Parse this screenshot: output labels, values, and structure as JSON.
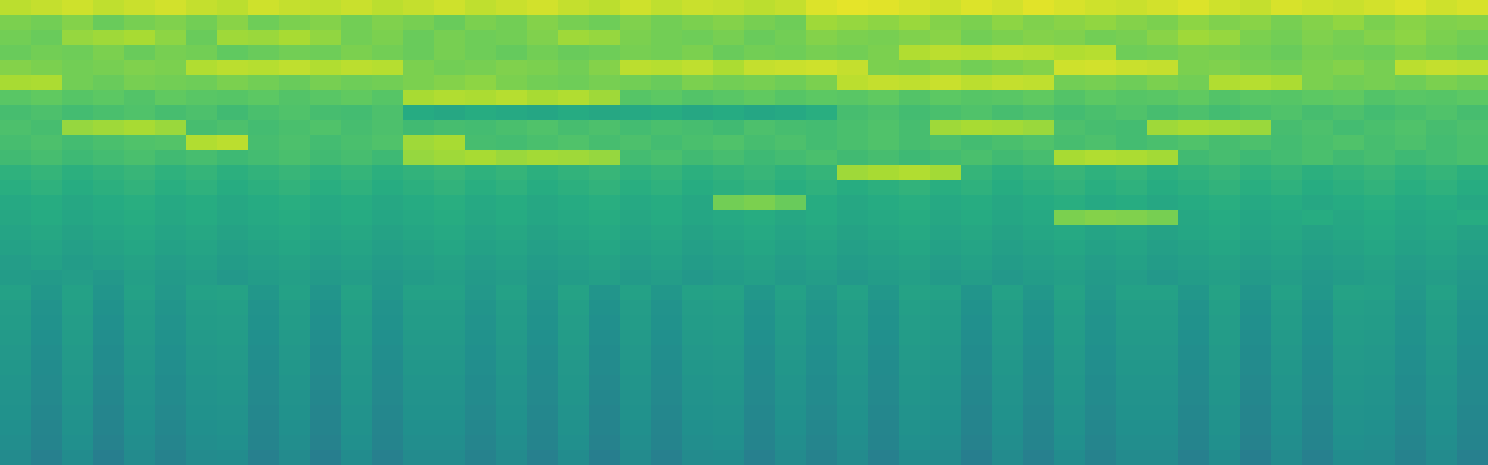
{
  "chart_data": {
    "type": "heatmap",
    "tick_labels": false,
    "color": "viridis",
    "zlim": [
      -40,
      100
    ],
    "cells": [
      [
        86,
        88,
        90,
        87,
        89,
        91,
        88,
        86,
        90,
        88,
        87,
        89,
        86,
        88,
        90,
        87,
        89,
        91,
        88,
        86,
        90,
        87,
        89,
        88,
        86,
        88,
        93,
        95,
        94,
        92,
        90,
        93,
        91,
        94,
        92,
        90,
        89,
        91,
        93,
        90,
        88,
        92,
        90,
        89,
        91,
        93,
        90,
        92
      ],
      [
        72,
        70,
        74,
        68,
        71,
        73,
        70,
        75,
        69,
        72,
        74,
        70,
        73,
        71,
        68,
        72,
        70,
        74,
        71,
        69,
        73,
        70,
        72,
        74,
        71,
        69,
        80,
        78,
        76,
        79,
        74,
        72,
        76,
        73,
        75,
        77,
        74,
        72,
        76,
        73,
        75,
        71,
        74,
        77,
        72,
        75,
        73,
        74
      ],
      [
        70,
        68,
        78,
        80,
        82,
        76,
        68,
        80,
        79,
        82,
        77,
        70,
        72,
        68,
        71,
        69,
        70,
        73,
        80,
        78,
        72,
        70,
        69,
        71,
        68,
        70,
        74,
        72,
        71,
        73,
        75,
        70,
        72,
        74,
        73,
        70,
        71,
        75,
        80,
        78,
        72,
        70,
        73,
        71,
        74,
        76,
        72,
        70
      ],
      [
        68,
        70,
        69,
        72,
        68,
        71,
        70,
        66,
        68,
        70,
        69,
        72,
        70,
        68,
        71,
        69,
        67,
        70,
        68,
        69,
        71,
        70,
        72,
        68,
        70,
        69,
        71,
        70,
        72,
        84,
        86,
        85,
        87,
        86,
        84,
        85,
        69,
        70,
        72,
        71,
        70,
        68,
        71,
        70,
        69,
        72,
        70,
        68
      ],
      [
        74,
        72,
        70,
        71,
        73,
        72,
        84,
        86,
        85,
        87,
        84,
        86,
        85,
        72,
        70,
        71,
        73,
        72,
        70,
        74,
        86,
        85,
        87,
        83,
        88,
        89,
        90,
        88,
        72,
        71,
        73,
        70,
        72,
        74,
        90,
        91,
        89,
        88,
        72,
        73,
        71,
        70,
        72,
        74,
        71,
        86,
        88,
        87
      ],
      [
        82,
        83,
        70,
        68,
        71,
        70,
        69,
        72,
        70,
        68,
        71,
        69,
        70,
        72,
        74,
        76,
        72,
        70,
        69,
        71,
        70,
        68,
        72,
        70,
        71,
        69,
        72,
        86,
        88,
        87,
        89,
        86,
        88,
        87,
        70,
        71,
        69,
        72,
        70,
        84,
        85,
        83,
        72,
        70,
        71,
        69,
        72,
        70
      ],
      [
        64,
        66,
        63,
        65,
        62,
        66,
        64,
        63,
        65,
        62,
        64,
        66,
        63,
        82,
        84,
        83,
        85,
        82,
        84,
        80,
        63,
        65,
        62,
        64,
        66,
        63,
        65,
        64,
        66,
        62,
        65,
        63,
        64,
        66,
        62,
        65,
        63,
        64,
        66,
        62,
        64,
        63,
        65,
        66,
        62,
        64,
        63,
        65
      ],
      [
        58,
        60,
        57,
        59,
        61,
        58,
        60,
        56,
        59,
        61,
        58,
        57,
        60,
        46,
        44,
        47,
        45,
        43,
        46,
        44,
        45,
        47,
        44,
        46,
        43,
        45,
        48,
        58,
        60,
        57,
        59,
        61,
        58,
        60,
        57,
        59,
        61,
        58,
        60,
        57,
        59,
        61,
        58,
        60,
        57,
        59,
        61,
        58
      ],
      [
        60,
        58,
        78,
        80,
        82,
        79,
        58,
        60,
        57,
        59,
        61,
        58,
        60,
        56,
        58,
        57,
        59,
        61,
        58,
        60,
        57,
        59,
        58,
        56,
        60,
        58,
        57,
        59,
        61,
        58,
        80,
        82,
        81,
        79,
        60,
        58,
        57,
        80,
        82,
        81,
        79,
        58,
        60,
        57,
        59,
        61,
        58,
        60
      ],
      [
        58,
        60,
        57,
        59,
        61,
        62,
        84,
        86,
        58,
        60,
        57,
        59,
        61,
        80,
        82,
        58,
        57,
        59,
        61,
        58,
        60,
        57,
        59,
        61,
        58,
        60,
        57,
        59,
        61,
        58,
        60,
        57,
        59,
        61,
        58,
        60,
        57,
        59,
        61,
        58,
        60,
        57,
        59,
        61,
        58,
        60,
        57,
        59
      ],
      [
        56,
        58,
        55,
        57,
        59,
        56,
        58,
        55,
        57,
        59,
        56,
        58,
        55,
        78,
        80,
        82,
        79,
        81,
        80,
        78,
        57,
        59,
        56,
        58,
        55,
        57,
        59,
        56,
        58,
        55,
        57,
        59,
        56,
        58,
        82,
        84,
        83,
        81,
        56,
        58,
        55,
        57,
        59,
        56,
        58,
        55,
        57,
        59
      ],
      [
        50,
        52,
        49,
        51,
        53,
        50,
        52,
        49,
        51,
        53,
        50,
        52,
        49,
        51,
        53,
        50,
        52,
        49,
        51,
        53,
        50,
        52,
        49,
        51,
        53,
        50,
        52,
        80,
        82,
        84,
        81,
        52,
        49,
        51,
        53,
        50,
        52,
        49,
        51,
        53,
        50,
        52,
        49,
        51,
        53,
        50,
        52,
        49
      ],
      [
        48,
        50,
        47,
        49,
        51,
        48,
        50,
        47,
        49,
        51,
        48,
        50,
        47,
        49,
        51,
        48,
        50,
        47,
        49,
        51,
        48,
        50,
        47,
        49,
        51,
        48,
        50,
        47,
        49,
        51,
        48,
        50,
        47,
        49,
        51,
        48,
        50,
        47,
        49,
        51,
        48,
        50,
        47,
        49,
        51,
        48,
        50,
        47
      ],
      [
        45,
        47,
        44,
        46,
        48,
        45,
        47,
        44,
        46,
        48,
        45,
        47,
        44,
        46,
        48,
        45,
        47,
        44,
        46,
        48,
        45,
        47,
        44,
        70,
        72,
        68,
        47,
        44,
        46,
        48,
        45,
        47,
        44,
        46,
        48,
        45,
        47,
        44,
        46,
        48,
        45,
        47,
        44,
        46,
        48,
        45,
        47,
        44
      ],
      [
        44,
        46,
        43,
        45,
        47,
        44,
        46,
        43,
        45,
        47,
        44,
        46,
        43,
        45,
        47,
        44,
        46,
        43,
        45,
        47,
        44,
        46,
        43,
        45,
        47,
        44,
        46,
        43,
        45,
        47,
        44,
        46,
        43,
        45,
        72,
        74,
        73,
        71,
        44,
        46,
        43,
        45,
        47,
        44,
        46,
        43,
        45,
        47
      ],
      [
        42,
        44,
        41,
        43,
        45,
        42,
        44,
        41,
        43,
        45,
        42,
        44,
        41,
        43,
        45,
        42,
        44,
        41,
        43,
        45,
        42,
        44,
        41,
        43,
        45,
        42,
        44,
        41,
        43,
        45,
        42,
        44,
        41,
        43,
        45,
        42,
        44,
        41,
        43,
        45,
        42,
        44,
        41,
        43,
        45,
        42,
        44,
        41
      ],
      [
        40,
        42,
        39,
        41,
        43,
        40,
        42,
        39,
        41,
        43,
        40,
        42,
        39,
        41,
        43,
        40,
        42,
        39,
        41,
        43,
        40,
        42,
        39,
        41,
        43,
        40,
        42,
        39,
        41,
        43,
        40,
        42,
        39,
        41,
        43,
        40,
        42,
        39,
        41,
        43,
        40,
        42,
        39,
        41,
        43,
        40,
        42,
        39
      ],
      [
        38,
        40,
        37,
        39,
        41,
        38,
        40,
        37,
        39,
        41,
        38,
        40,
        37,
        39,
        41,
        38,
        40,
        37,
        39,
        41,
        38,
        40,
        37,
        39,
        41,
        38,
        40,
        37,
        39,
        41,
        38,
        40,
        37,
        39,
        41,
        38,
        40,
        37,
        39,
        41,
        38,
        40,
        37,
        39,
        41,
        38,
        40,
        37
      ],
      [
        37,
        36,
        38,
        35,
        39,
        36,
        38,
        35,
        37,
        39,
        36,
        38,
        35,
        37,
        39,
        36,
        38,
        35,
        37,
        39,
        36,
        38,
        35,
        37,
        39,
        36,
        38,
        35,
        37,
        39,
        36,
        38,
        35,
        37,
        39,
        36,
        38,
        35,
        37,
        39,
        36,
        38,
        35,
        37,
        39,
        36,
        38,
        35
      ],
      [
        40,
        34,
        40,
        33,
        40,
        35,
        40,
        41,
        34,
        40,
        33,
        41,
        34,
        40,
        40,
        35,
        40,
        34,
        41,
        33,
        40,
        34,
        40,
        41,
        34,
        40,
        35,
        40,
        34,
        41,
        40,
        33,
        40,
        34,
        41,
        35,
        40,
        40,
        34,
        41,
        33,
        40,
        34,
        41,
        40,
        35,
        40,
        34
      ],
      [
        38,
        32,
        39,
        31,
        38,
        33,
        38,
        39,
        32,
        38,
        31,
        39,
        32,
        38,
        38,
        33,
        38,
        32,
        39,
        31,
        38,
        32,
        38,
        39,
        32,
        38,
        33,
        38,
        32,
        39,
        38,
        31,
        38,
        32,
        39,
        33,
        38,
        38,
        32,
        39,
        31,
        38,
        32,
        39,
        38,
        33,
        38,
        32
      ],
      [
        37,
        31,
        38,
        30,
        37,
        32,
        37,
        38,
        31,
        37,
        30,
        38,
        31,
        37,
        37,
        32,
        37,
        31,
        38,
        30,
        37,
        31,
        37,
        38,
        31,
        37,
        32,
        37,
        31,
        38,
        37,
        30,
        37,
        31,
        38,
        32,
        37,
        37,
        31,
        38,
        30,
        37,
        31,
        38,
        37,
        32,
        37,
        31
      ],
      [
        36,
        30,
        37,
        29,
        36,
        31,
        36,
        37,
        30,
        36,
        29,
        37,
        30,
        36,
        36,
        31,
        36,
        30,
        37,
        29,
        36,
        30,
        36,
        37,
        30,
        36,
        31,
        36,
        30,
        37,
        36,
        29,
        36,
        30,
        37,
        31,
        36,
        36,
        30,
        37,
        29,
        36,
        30,
        37,
        36,
        31,
        36,
        30
      ],
      [
        35,
        29,
        36,
        28,
        35,
        30,
        35,
        36,
        29,
        35,
        28,
        36,
        29,
        35,
        35,
        30,
        35,
        29,
        36,
        28,
        35,
        29,
        35,
        36,
        29,
        35,
        30,
        35,
        29,
        36,
        35,
        28,
        35,
        29,
        36,
        30,
        35,
        35,
        29,
        36,
        28,
        35,
        29,
        36,
        35,
        30,
        35,
        29
      ],
      [
        34,
        28,
        35,
        27,
        34,
        29,
        34,
        35,
        28,
        34,
        27,
        35,
        28,
        34,
        34,
        29,
        34,
        28,
        35,
        27,
        34,
        28,
        34,
        35,
        28,
        34,
        29,
        34,
        28,
        35,
        34,
        27,
        34,
        28,
        35,
        29,
        34,
        34,
        28,
        35,
        27,
        34,
        28,
        35,
        34,
        29,
        34,
        28
      ],
      [
        33,
        27,
        34,
        26,
        33,
        28,
        33,
        34,
        27,
        33,
        26,
        34,
        27,
        33,
        33,
        28,
        33,
        27,
        34,
        26,
        33,
        27,
        33,
        34,
        27,
        33,
        28,
        33,
        27,
        34,
        33,
        26,
        33,
        27,
        34,
        28,
        33,
        33,
        27,
        34,
        26,
        33,
        27,
        34,
        33,
        28,
        33,
        27
      ],
      [
        32,
        26,
        33,
        25,
        32,
        27,
        32,
        33,
        26,
        32,
        25,
        33,
        26,
        32,
        32,
        27,
        32,
        26,
        33,
        25,
        32,
        26,
        32,
        33,
        26,
        32,
        27,
        32,
        26,
        33,
        32,
        25,
        32,
        26,
        33,
        27,
        32,
        32,
        26,
        33,
        25,
        32,
        26,
        33,
        32,
        27,
        32,
        26
      ],
      [
        31,
        25,
        32,
        24,
        31,
        26,
        31,
        32,
        25,
        31,
        24,
        32,
        25,
        31,
        31,
        26,
        31,
        25,
        32,
        24,
        31,
        25,
        31,
        32,
        25,
        31,
        26,
        31,
        25,
        32,
        31,
        24,
        31,
        25,
        32,
        26,
        31,
        31,
        25,
        32,
        24,
        31,
        25,
        32,
        31,
        26,
        31,
        25
      ],
      [
        30,
        24,
        31,
        23,
        30,
        25,
        30,
        31,
        24,
        30,
        23,
        31,
        24,
        30,
        30,
        25,
        30,
        24,
        31,
        23,
        30,
        24,
        30,
        31,
        24,
        30,
        25,
        30,
        24,
        31,
        30,
        23,
        30,
        24,
        31,
        25,
        30,
        30,
        24,
        31,
        23,
        30,
        24,
        31,
        30,
        25,
        30,
        24
      ],
      [
        29,
        23,
        30,
        22,
        29,
        24,
        29,
        30,
        23,
        29,
        22,
        30,
        23,
        29,
        29,
        24,
        29,
        23,
        30,
        22,
        29,
        23,
        29,
        30,
        23,
        29,
        24,
        29,
        23,
        30,
        29,
        22,
        29,
        23,
        30,
        24,
        29,
        29,
        23,
        30,
        22,
        29,
        23,
        30,
        29,
        24,
        29,
        23
      ],
      [
        27,
        21,
        28,
        20,
        27,
        22,
        27,
        28,
        21,
        27,
        20,
        28,
        21,
        27,
        27,
        22,
        27,
        21,
        28,
        20,
        27,
        21,
        27,
        28,
        21,
        27,
        22,
        27,
        21,
        28,
        27,
        20,
        27,
        21,
        28,
        22,
        27,
        27,
        21,
        28,
        20,
        27,
        21,
        28,
        27,
        22,
        27,
        21
      ]
    ]
  }
}
